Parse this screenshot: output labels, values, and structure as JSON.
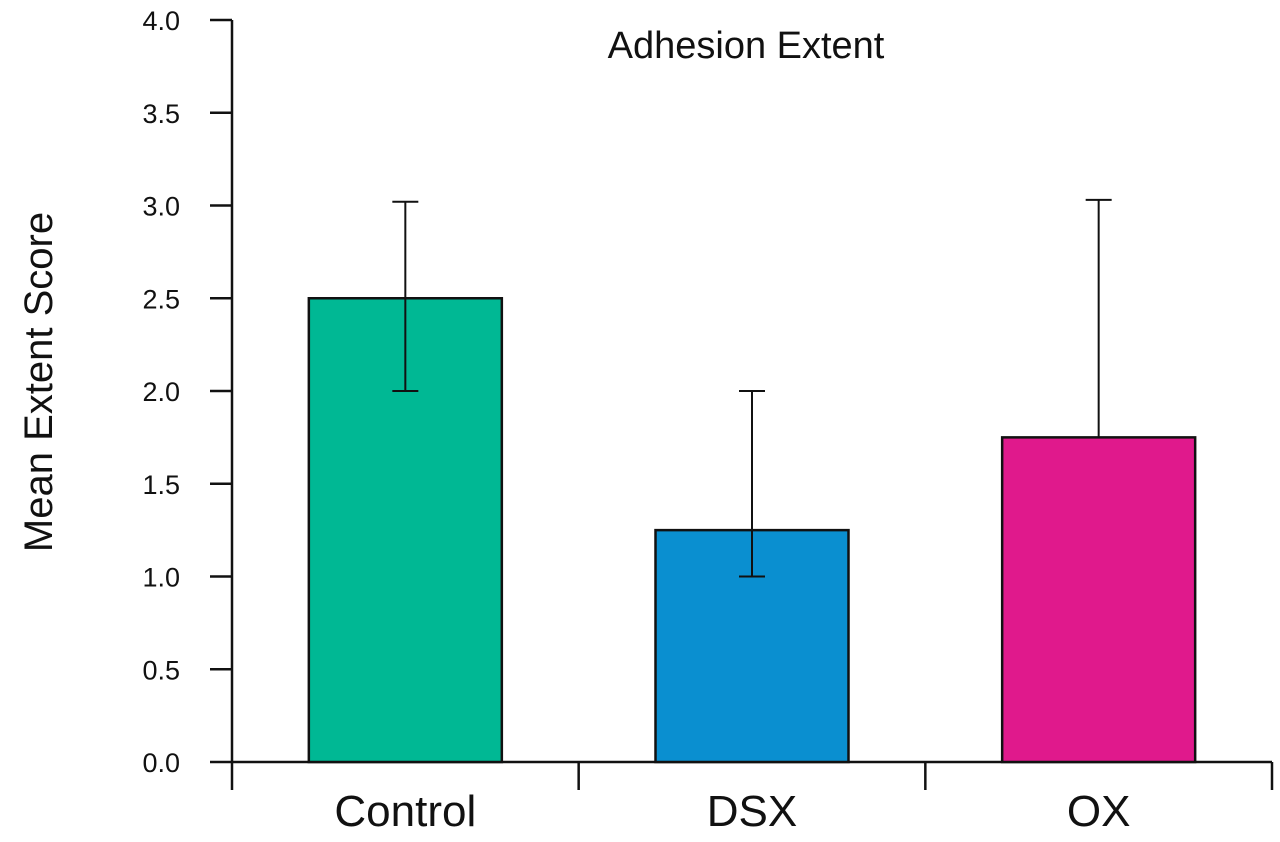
{
  "chart_data": {
    "type": "bar",
    "title": "Adhesion Extent",
    "ylabel": "Mean Extent Score",
    "xlabel": "",
    "categories": [
      "Control",
      "DSX",
      "OX"
    ],
    "values": [
      2.5,
      1.25,
      1.75
    ],
    "error_upper": [
      3.02,
      2.0,
      3.03
    ],
    "error_lower": [
      2.0,
      1.0,
      1.75
    ],
    "colors": [
      "#00b894",
      "#0a8fd0",
      "#e0198c"
    ],
    "ylim": [
      0,
      4
    ],
    "yticks": [
      "0.0",
      "0.5",
      "1.0",
      "1.5",
      "2.0",
      "2.5",
      "3.0",
      "3.5",
      "4.0"
    ],
    "grid": false,
    "legend": "none"
  }
}
